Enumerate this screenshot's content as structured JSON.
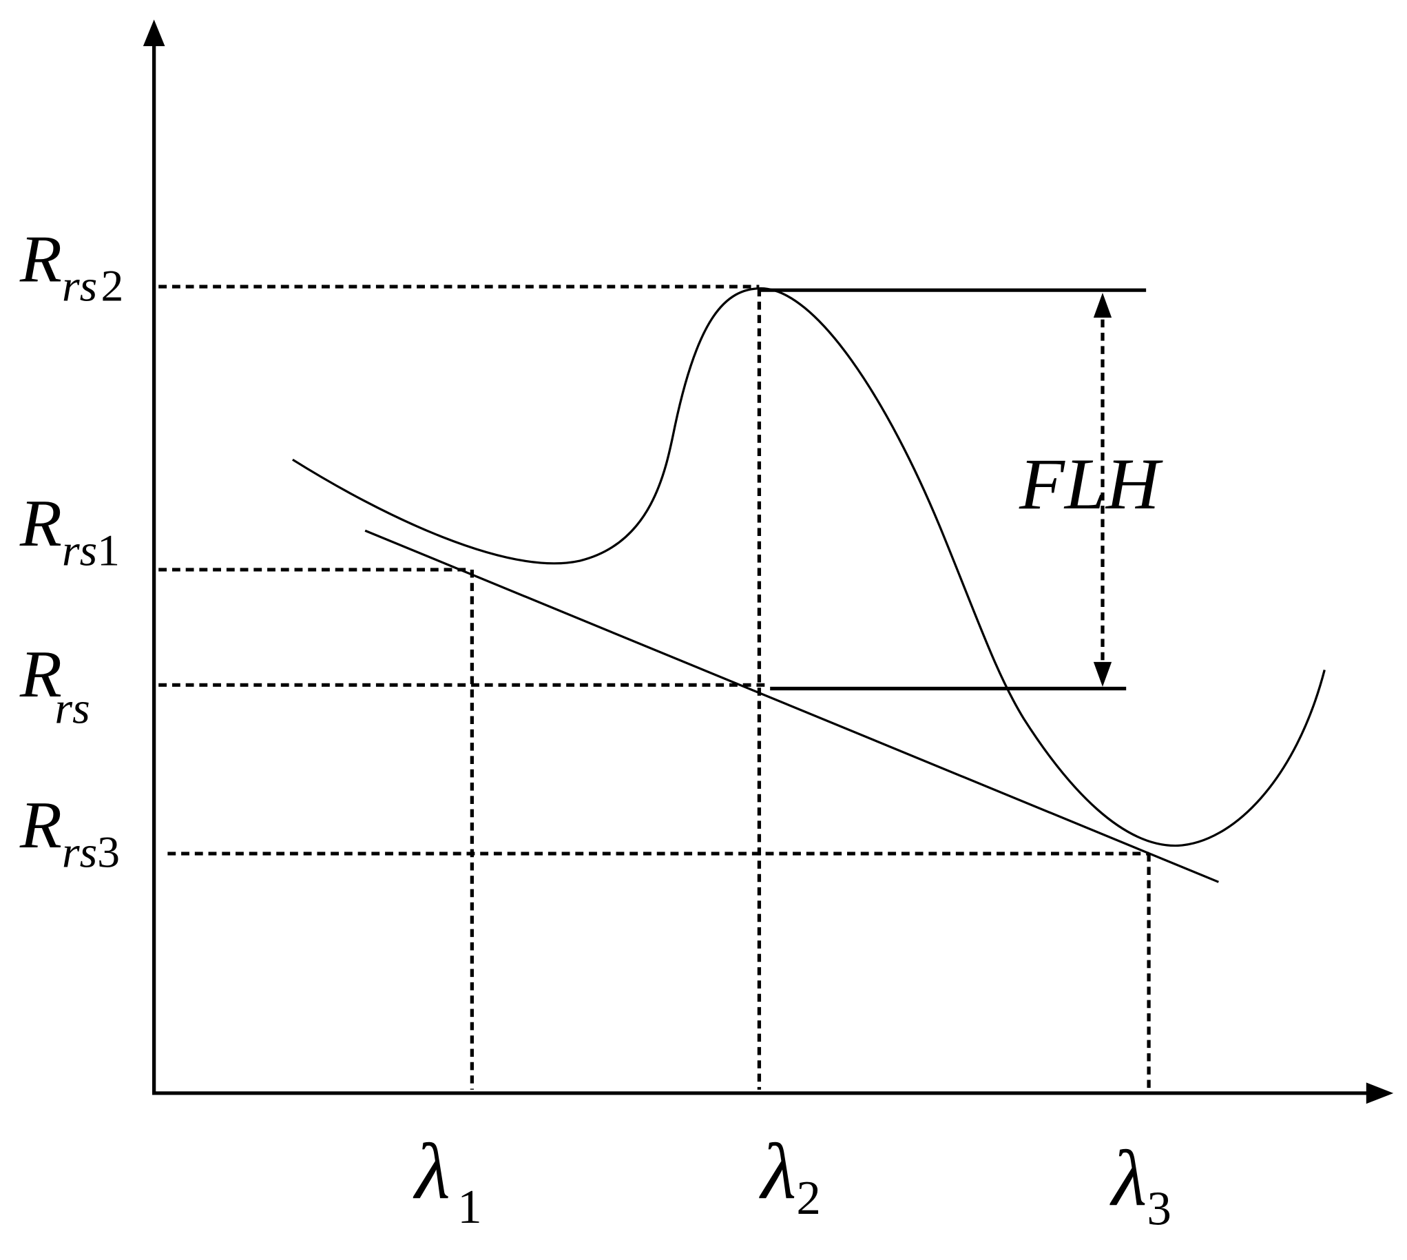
{
  "y_labels": [
    {
      "symbol": "R",
      "subscript": "rs",
      "index": "2"
    },
    {
      "symbol": "R",
      "subscript": "rs",
      "index": "1"
    },
    {
      "symbol": "R",
      "subscript": "rs"
    },
    {
      "symbol": "R",
      "subscript": "rs",
      "index": "3"
    }
  ],
  "x_labels": [
    {
      "symbol": "λ",
      "index": "1"
    },
    {
      "symbol": "λ",
      "index": "2"
    },
    {
      "symbol": "λ",
      "index": "3"
    }
  ],
  "annotation": "FLH"
}
